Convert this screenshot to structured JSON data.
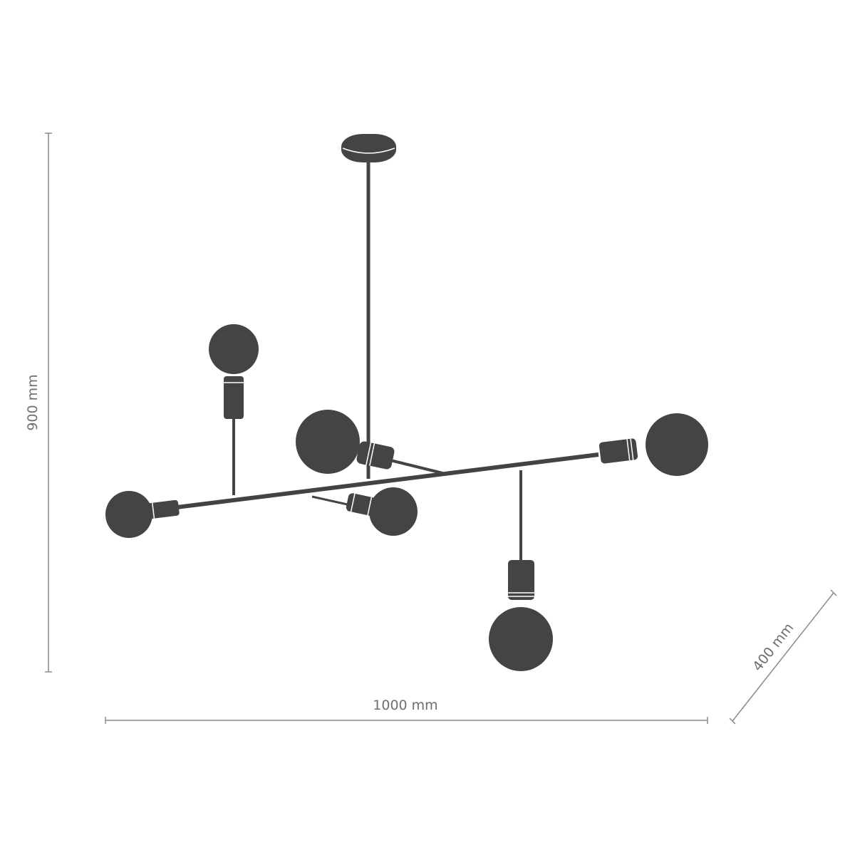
{
  "dimensions": {
    "height": "900 mm",
    "width": "1000 mm",
    "depth": "400 mm"
  },
  "colors": {
    "ink": "#444444",
    "dimension_line": "#8a8a8a"
  },
  "lamp": {
    "bulb_count": 6
  }
}
